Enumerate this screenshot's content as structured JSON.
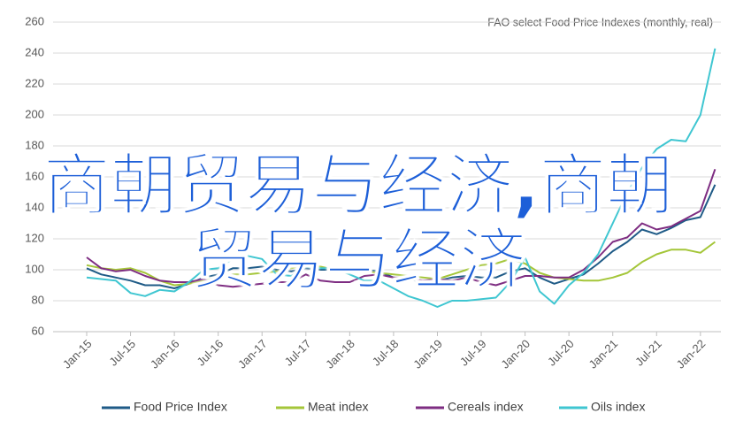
{
  "chart_data": {
    "type": "line",
    "note": "FAO select Food Price Indexes (monthly, real)",
    "overlay_title": "商朝贸易与经济,商朝贸易与经济",
    "categories": [
      "Jan-15",
      null,
      null,
      "Jul-15",
      null,
      null,
      "Jan-16",
      null,
      null,
      "Jul-16",
      null,
      null,
      "Jan-17",
      null,
      null,
      "Jul-17",
      null,
      null,
      "Jan-18",
      null,
      null,
      "Jul-18",
      null,
      null,
      "Jan-19",
      null,
      null,
      "Jul-19",
      null,
      null,
      "Jan-20",
      null,
      null,
      "Jul-20",
      null,
      null,
      "Jan-21",
      null,
      null,
      "Jul-21",
      null,
      null,
      "Jan-22",
      null
    ],
    "series": [
      {
        "name": "Food Price Index",
        "color": "#1f5b87",
        "values": [
          101,
          97,
          95,
          93,
          90,
          90,
          88,
          91,
          95,
          97,
          101,
          101,
          102,
          100,
          99,
          101,
          100,
          100,
          99,
          100,
          99,
          95,
          94,
          92,
          93,
          95,
          96,
          95,
          95,
          99,
          101,
          95,
          91,
          94,
          97,
          104,
          112,
          118,
          126,
          123,
          127,
          132,
          134,
          155
        ]
      },
      {
        "name": "Meat index",
        "color": "#a4c639",
        "values": [
          103,
          101,
          100,
          101,
          98,
          93,
          90,
          91,
          93,
          95,
          97,
          97,
          98,
          99,
          101,
          103,
          102,
          100,
          99,
          99,
          98,
          97,
          96,
          95,
          94,
          97,
          100,
          103,
          104,
          107,
          104,
          98,
          95,
          94,
          93,
          93,
          95,
          98,
          105,
          110,
          113,
          113,
          111,
          118
        ]
      },
      {
        "name": "Cereals index",
        "color": "#7e2d82",
        "values": [
          108,
          101,
          99,
          100,
          96,
          93,
          92,
          92,
          94,
          90,
          89,
          90,
          91,
          92,
          92,
          97,
          93,
          92,
          92,
          96,
          97,
          95,
          95,
          93,
          94,
          93,
          95,
          92,
          90,
          93,
          96,
          96,
          95,
          95,
          100,
          108,
          118,
          121,
          130,
          126,
          128,
          133,
          138,
          165
        ]
      },
      {
        "name": "Oils index",
        "color": "#3fc6d1",
        "values": [
          95,
          94,
          93,
          85,
          83,
          87,
          86,
          92,
          100,
          101,
          107,
          109,
          107,
          97,
          96,
          102,
          101,
          101,
          97,
          93,
          93,
          88,
          83,
          80,
          76,
          80,
          80,
          81,
          82,
          92,
          108,
          86,
          78,
          90,
          98,
          110,
          130,
          150,
          166,
          178,
          184,
          183,
          200,
          243
        ]
      }
    ],
    "ylim": [
      60,
      260
    ],
    "yticks": [
      60,
      80,
      100,
      120,
      140,
      160,
      180,
      200,
      220,
      240,
      260
    ],
    "grid": true
  }
}
